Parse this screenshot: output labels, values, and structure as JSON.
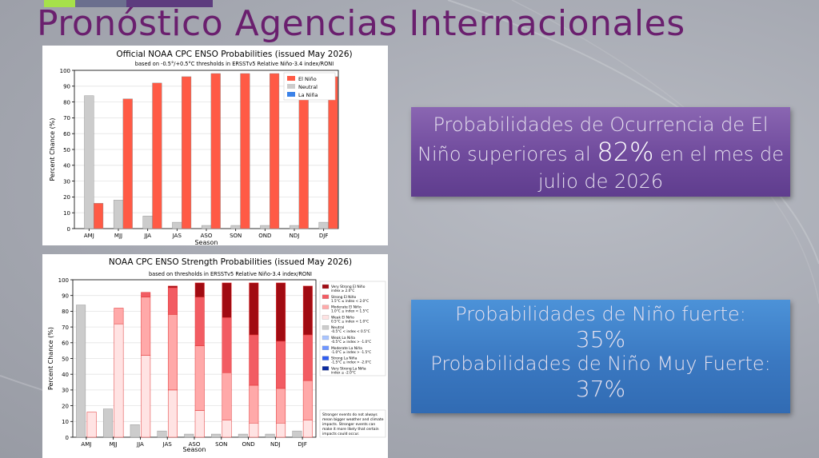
{
  "slide": {
    "title": "Pronóstico Agencias Internacionales",
    "top_bar_colors": [
      "#a6e14a",
      "#6b6f8e",
      "#5d3c7e"
    ]
  },
  "callout_probability": {
    "line1": "Probabilidades de Ocurrencia de El",
    "line2_before": "Niño superiores al ",
    "line2_value": "82%",
    "line2_after": " en el mes de",
    "line3": "julio de 2026",
    "background": "#6f4a9c"
  },
  "callout_strength": {
    "strong_label": "Probabilidades de Niño fuerte:",
    "strong_value": "35%",
    "very_strong_label": "Probabilidades de Niño Muy Fuerte:",
    "very_strong_value": "37%",
    "background": "#3a78c1"
  },
  "chart_data": [
    {
      "type": "bar",
      "title": "Official NOAA CPC ENSO Probabilities (issued May 2026)",
      "subtitle": "based on -0.5°/+0.5°C thresholds in ERSSTv5 Relative Niño-3.4 index/RONI",
      "xlabel": "Season",
      "ylabel": "Percent Chance (%)",
      "ylim": [
        0,
        100
      ],
      "yticks": [
        0,
        10,
        20,
        30,
        40,
        50,
        60,
        70,
        80,
        90,
        100
      ],
      "grid": true,
      "legend_position": "top-right",
      "categories": [
        "AMJ",
        "MJJ",
        "JJA",
        "JAS",
        "ASO",
        "SON",
        "OND",
        "NDJ",
        "DJF"
      ],
      "series": [
        {
          "name": "La Niña",
          "color": "#3b82e8",
          "values": [
            0,
            0,
            0,
            0,
            0,
            0,
            0,
            0,
            0
          ]
        },
        {
          "name": "Neutral",
          "color": "#cccccc",
          "values": [
            84,
            18,
            8,
            4,
            2,
            2,
            2,
            2,
            4
          ]
        },
        {
          "name": "El Niño",
          "color": "#ff5a45",
          "values": [
            16,
            82,
            92,
            96,
            98,
            98,
            98,
            98,
            96
          ]
        }
      ],
      "legend_order": [
        "El Niño",
        "Neutral",
        "La Niña"
      ]
    },
    {
      "type": "bar",
      "stacked": true,
      "title": "NOAA CPC ENSO Strength Probabilities (issued May 2026)",
      "subtitle": "based on thresholds in ERSSTv5 Relative Niño-3.4 index/RONI",
      "xlabel": "Season",
      "ylabel": "Percent Chance (%)",
      "ylim": [
        0,
        100
      ],
      "yticks": [
        0,
        10,
        20,
        30,
        40,
        50,
        60,
        70,
        80,
        90,
        100
      ],
      "grid": true,
      "legend_position": "right",
      "categories": [
        "AMJ",
        "MJJ",
        "JJA",
        "JAS",
        "ASO",
        "SON",
        "OND",
        "NDJ",
        "DJF"
      ],
      "neutral": {
        "name": "Neutral",
        "range": "-0.5°C < index < 0.5°C",
        "color": "#cccccc",
        "values": [
          84,
          18,
          8,
          4,
          2,
          2,
          2,
          2,
          4
        ]
      },
      "el_nino_stack": [
        {
          "name": "Weak El Niño",
          "range": "0.5°C ≤ index < 1.0°C",
          "color": "#ffe3e3",
          "values": [
            16,
            72,
            52,
            30,
            17,
            11,
            9,
            9,
            11
          ]
        },
        {
          "name": "Moderate El Niño",
          "range": "1.0°C ≤ index < 1.5°C",
          "color": "#ffa9a9",
          "values": [
            0,
            10,
            37,
            48,
            41,
            30,
            24,
            22,
            25
          ]
        },
        {
          "name": "Strong El Niño",
          "range": "1.5°C ≤ index < 2.0°C",
          "color": "#f25c63",
          "values": [
            0,
            0,
            3,
            17,
            31,
            35,
            32,
            30,
            29
          ]
        },
        {
          "name": "Very Strong El Niño",
          "range": "index ≥ 2.0°C",
          "color": "#a10b12",
          "values": [
            0,
            0,
            0,
            1,
            9,
            22,
            33,
            37,
            31
          ]
        }
      ],
      "la_nina_legend": [
        {
          "name": "Weak La Niña",
          "range": "-0.5°C ≥ index > -1.0°C",
          "color": "#a9c4ff"
        },
        {
          "name": "Moderate La Niña",
          "range": "-1.0°C ≥ index > -1.5°C",
          "color": "#6e96ff"
        },
        {
          "name": "Strong La Niña",
          "range": "-1.5°C ≥ index > -2.0°C",
          "color": "#2f5df0"
        },
        {
          "name": "Very Strong La Niña",
          "range": "index ≤ -2.0°C",
          "color": "#0a2a9e"
        }
      ],
      "note": [
        "Stronger events do not always",
        "mean bigger weather and climate",
        "impacts. Stronger events can",
        "make it more likely that certain",
        "impacts could occur."
      ]
    }
  ]
}
